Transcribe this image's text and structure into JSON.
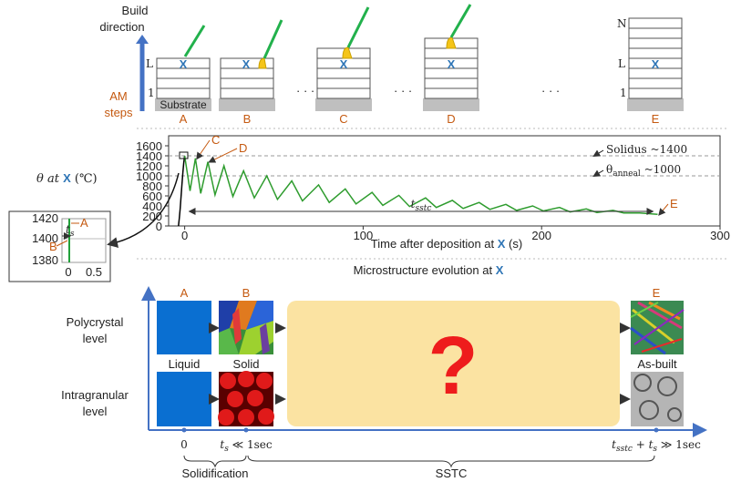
{
  "chart_data": {
    "type": "line",
    "ylabel": {
      "a": "θ at ",
      "b": "X",
      "c": " (℃)"
    },
    "xlabel": {
      "a": "Time after deposition at ",
      "b": "X",
      "c": " (s)"
    },
    "xlim": [
      -9,
      300
    ],
    "xticks": [
      0,
      100,
      200,
      300
    ],
    "ylim": [
      0,
      1800
    ],
    "yticks": [
      0,
      200,
      400,
      600,
      800,
      1000,
      1200,
      1400,
      1600
    ],
    "series": [
      {
        "color": "#000000",
        "x": [
          -3.5,
          -3,
          -2.5,
          -2,
          -1.5,
          -1,
          -0.5,
          0
        ],
        "values": [
          0,
          150,
          350,
          600,
          850,
          1080,
          1260,
          1400
        ]
      },
      {
        "color": "#2e9c2e",
        "x": [
          0,
          3,
          6,
          9,
          13,
          17,
          22,
          27,
          33,
          39,
          46,
          52,
          60,
          66,
          75,
          81,
          90,
          96,
          105,
          111,
          120,
          126,
          135,
          141,
          150,
          156,
          165,
          171,
          180,
          186,
          195,
          201,
          210,
          216,
          225,
          231,
          240,
          246,
          255,
          265
        ],
        "values": [
          1400,
          700,
          1350,
          650,
          1280,
          620,
          1200,
          590,
          1100,
          560,
          1000,
          530,
          900,
          500,
          820,
          470,
          740,
          440,
          670,
          410,
          610,
          390,
          560,
          370,
          510,
          350,
          470,
          330,
          430,
          310,
          400,
          300,
          370,
          280,
          340,
          270,
          310,
          260,
          260,
          230
        ]
      }
    ],
    "annotations": [
      {
        "value": 1400,
        "a": "Solidus",
        "c": " ~1400"
      },
      {
        "value": 1000,
        "a": "θ",
        "b": "anneal",
        "c": " ~1000"
      }
    ],
    "span_label": {
      "a": "t",
      "b": "sstc"
    },
    "points": [
      "C",
      "D",
      "E"
    ]
  },
  "inset": {
    "yticks": [
      "1420",
      "1400",
      "1380"
    ],
    "xticks": [
      "0",
      "0.5"
    ],
    "ts": {
      "a": "t",
      "b": "s"
    },
    "labels": [
      "A",
      "B"
    ]
  },
  "top": {
    "build": [
      "Build",
      "direction"
    ],
    "steps": [
      "AM",
      "steps"
    ],
    "substrate": "Substrate",
    "stages": [
      "A",
      "B",
      "C",
      "D",
      "E"
    ],
    "layer_l": "L",
    "layer_1": "1",
    "layer_n": "N",
    "x": "X",
    "dots": "· · ·"
  },
  "bottom": {
    "title": {
      "a": "Microstructure evolution at ",
      "b": "X"
    },
    "rows": [
      [
        "Polycrystal",
        "level"
      ],
      [
        "Intragranular",
        "level"
      ]
    ],
    "stages": [
      "A",
      "B",
      "E"
    ],
    "states": [
      "Liquid",
      "Solid",
      "As-built"
    ],
    "unknown": "?",
    "t0": "0",
    "t1": {
      "a": "t",
      "b": "s",
      "c": " ≪ 1sec"
    },
    "t2": {
      "a": "t",
      "b": "sstc",
      "c": " + t",
      "d": "s",
      "e": " ≫ 1sec"
    },
    "phases": [
      "Solidification",
      "SSTC"
    ]
  }
}
